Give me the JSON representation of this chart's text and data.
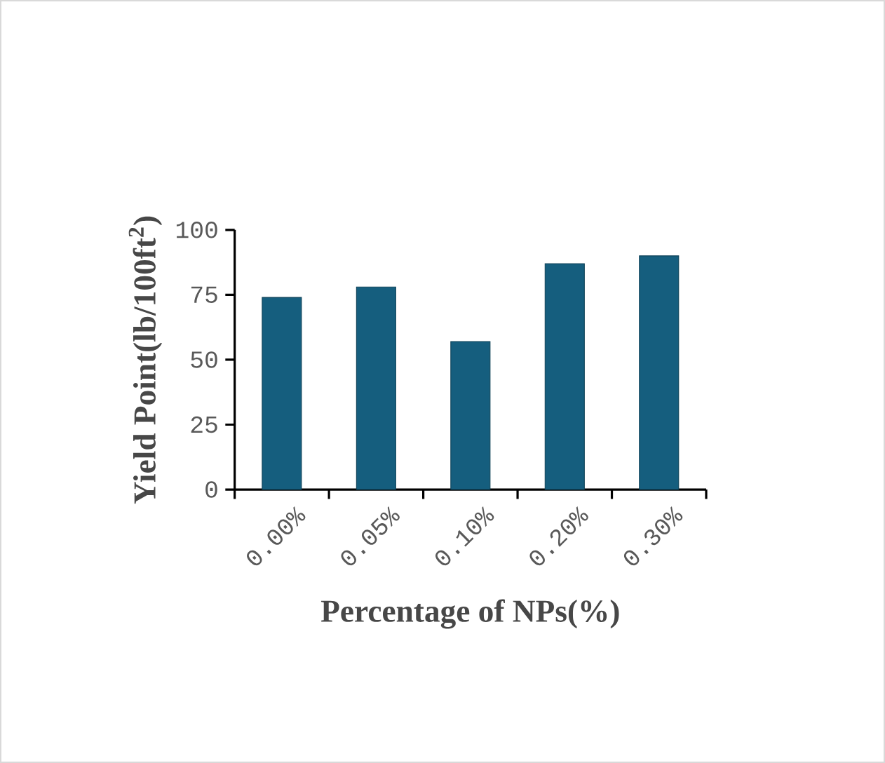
{
  "chart_data": {
    "type": "bar",
    "xlabel": "Percentage of NPs(%)",
    "ylabel": "Yield Point(lb/100ft$^{2}$)",
    "categories": [
      "0.00%",
      "0.05%",
      "0.10%",
      "0.20%",
      "0.30%"
    ],
    "values": [
      74,
      78,
      57,
      87,
      90
    ],
    "color": "#155e7e",
    "ylim": [
      0,
      100
    ],
    "yticks": [
      0,
      25,
      50,
      75,
      100
    ]
  }
}
